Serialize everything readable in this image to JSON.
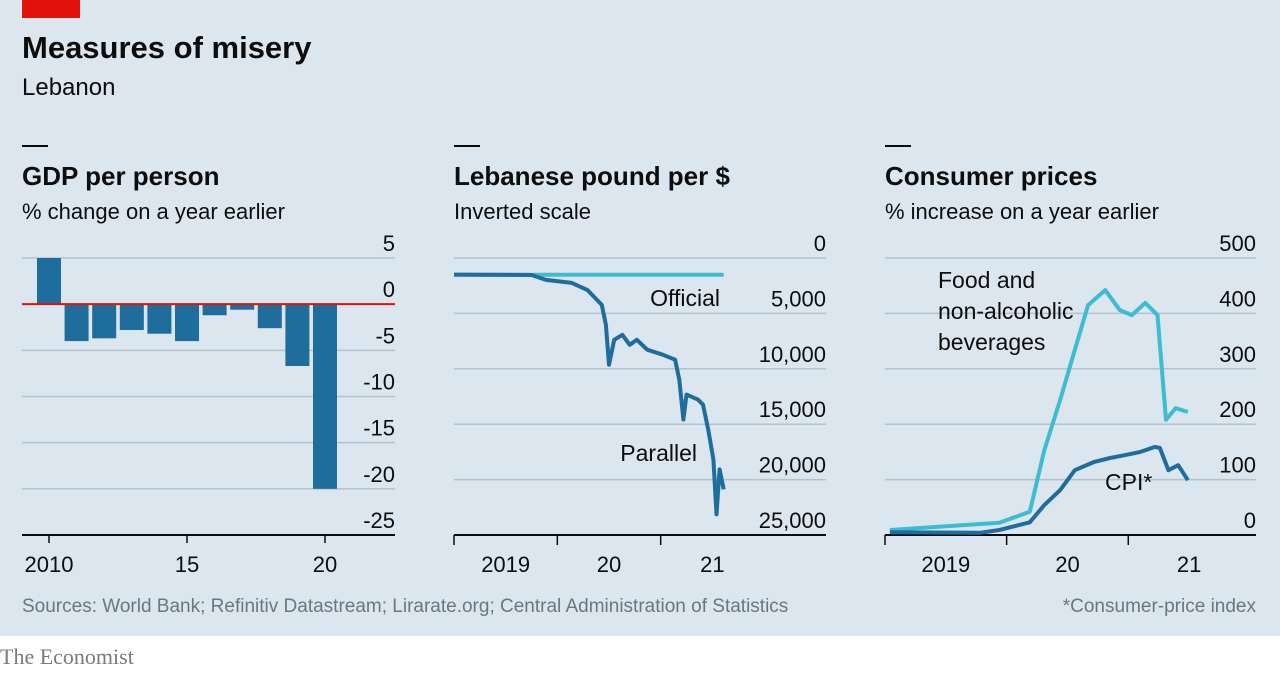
{
  "title": "Measures of misery",
  "subtitle": "Lebanon",
  "source": "Sources: World Bank; Refinitiv Datastream; Lirarate.org; Central Administration of Statistics",
  "footnote": "*Consumer-price index",
  "brand": "The Economist",
  "chart_data": [
    {
      "type": "bar",
      "title": "GDP per person",
      "subtitle": "% change on a year earlier",
      "categories": [
        "2010",
        null,
        null,
        null,
        null,
        "15",
        null,
        null,
        null,
        null,
        "20"
      ],
      "values": [
        5,
        -4,
        -3.7,
        -2.8,
        -3.2,
        -4,
        -1.2,
        -0.6,
        -2.6,
        -6.7,
        -20
      ],
      "color": "#1f6d9c",
      "zero_line_color": "#e3120b",
      "ylim": [
        -25,
        5
      ],
      "yticks": [
        5,
        0,
        -5,
        -10,
        -15,
        -20,
        -25
      ],
      "grid": true
    },
    {
      "type": "line",
      "title": "Lebanese pound per $",
      "subtitle": "Inverted scale",
      "xlim": [
        2019,
        2022.6
      ],
      "xticks": [
        2019,
        {
          "value": 2020,
          "label": "20"
        },
        {
          "value": 2021,
          "label": "21"
        }
      ],
      "ylim": [
        25000,
        0
      ],
      "yticks": [
        0,
        {
          "value": 5000,
          "label": "5,000"
        },
        {
          "value": 10000,
          "label": "10,000"
        },
        {
          "value": 15000,
          "label": "15,000"
        },
        {
          "value": 20000,
          "label": "20,000"
        },
        {
          "value": 25000,
          "label": "25,000"
        }
      ],
      "grid": true,
      "series": [
        {
          "name": [
            "Official"
          ],
          "color": "#3ebcd2",
          "x": [
            2019,
            2021.61
          ],
          "values": [
            1507.5,
            1507.5
          ]
        },
        {
          "name": [
            "Parallel"
          ],
          "color": "#1f6d9c",
          "x": [
            2019,
            2019.75,
            2019.89,
            2020.14,
            2020.29,
            2020.43,
            2020.47,
            2020.5,
            2020.55,
            2020.63,
            2020.7,
            2020.77,
            2020.87,
            2021.02,
            2021.14,
            2021.18,
            2021.22,
            2021.25,
            2021.36,
            2021.41,
            2021.46,
            2021.51,
            2021.54,
            2021.57,
            2021.61
          ],
          "values": [
            1500,
            1530,
            1980,
            2250,
            2880,
            4230,
            6030,
            9630,
            7380,
            6930,
            7830,
            7380,
            8280,
            8730,
            9180,
            10980,
            14580,
            12330,
            12780,
            13230,
            15480,
            18180,
            23130,
            19080,
            20880
          ]
        }
      ]
    },
    {
      "type": "line",
      "title": "Consumer prices",
      "subtitle": "% increase on a year earlier",
      "xlim": [
        2019,
        2022.05
      ],
      "xticks": [
        2019,
        {
          "value": 2020,
          "label": "20"
        },
        {
          "value": 2021,
          "label": "21"
        }
      ],
      "ylim": [
        0,
        500
      ],
      "yticks": [
        0,
        100,
        200,
        300,
        400,
        500
      ],
      "grid": true,
      "series": [
        {
          "name": [
            "Food and",
            "non-alcoholic",
            "beverages"
          ],
          "color": "#3ebcd2",
          "x": [
            2019.04,
            2019.94,
            2020.19,
            2020.31,
            2020.44,
            2020.56,
            2020.67,
            2020.81,
            2020.93,
            2021.03,
            2021.14,
            2021.24,
            2021.31,
            2021.39,
            2021.49
          ],
          "values": [
            9,
            22,
            42,
            153,
            244,
            334,
            415,
            442,
            406,
            397,
            419,
            397,
            208,
            229,
            222
          ]
        },
        {
          "name": [
            "CPI*"
          ],
          "color": "#1f6d9c",
          "x": [
            2019.04,
            2019.78,
            2019.94,
            2020.19,
            2020.31,
            2020.44,
            2020.56,
            2020.72,
            2020.85,
            2020.97,
            2021.1,
            2021.22,
            2021.26,
            2021.33,
            2021.41,
            2021.49
          ],
          "values": [
            5,
            4,
            9,
            23,
            54,
            81,
            117,
            132,
            139,
            144,
            150,
            159,
            157,
            117,
            126,
            99
          ]
        }
      ]
    }
  ]
}
